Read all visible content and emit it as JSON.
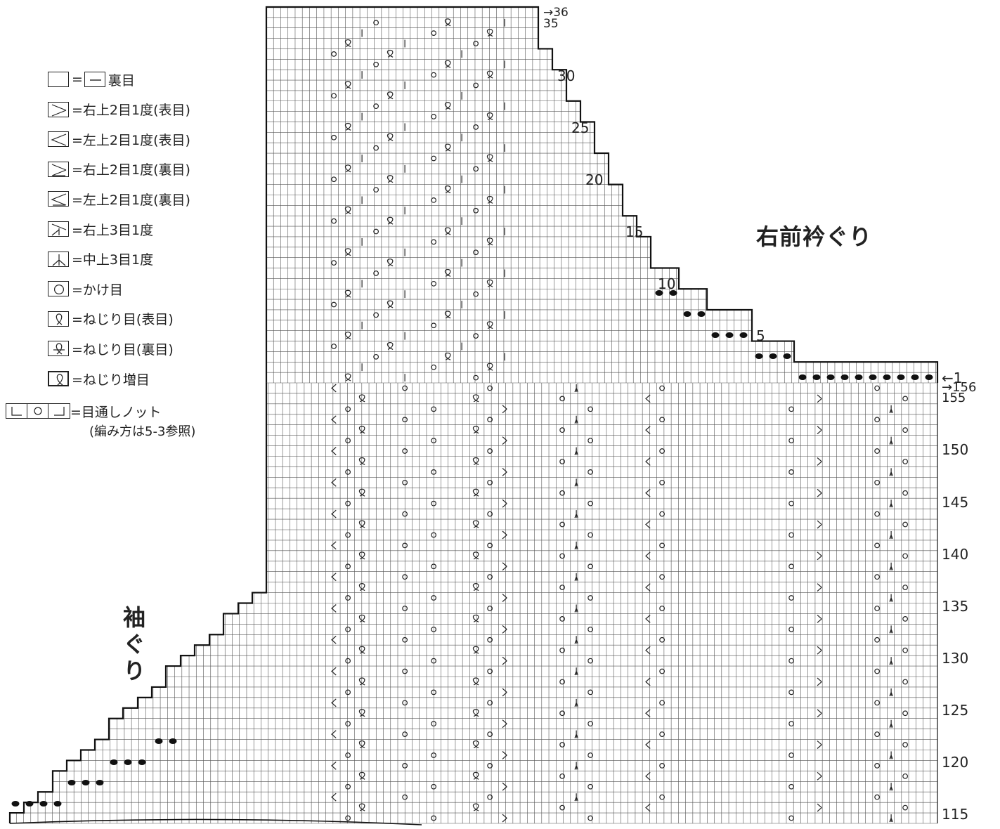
{
  "legend": [
    {
      "symbol": "purl",
      "text": "=",
      "text2": "裏目"
    },
    {
      "symbol": "k2tog-right",
      "text": "=右上2目1度(表目)"
    },
    {
      "symbol": "k2tog-left",
      "text": "=左上2目1度(表目)"
    },
    {
      "symbol": "p2tog-right",
      "text": "=右上2目1度(裏目)"
    },
    {
      "symbol": "p2tog-left",
      "text": "=左上2目1度(裏目)"
    },
    {
      "symbol": "k3tog-right",
      "text": "=右上3目1度"
    },
    {
      "symbol": "k3tog-center",
      "text": "=中上3目1度"
    },
    {
      "symbol": "yarn-over",
      "text": "=かけ目"
    },
    {
      "symbol": "twisted-knit",
      "text": "=ねじり目(表目)"
    },
    {
      "symbol": "twisted-purl",
      "text": "=ねじり目(裏目)"
    },
    {
      "symbol": "twisted-increase",
      "text": "=ねじり増目"
    }
  ],
  "knot": {
    "text": "=目通しノット",
    "note": "(編み方は5-3参照)"
  },
  "labels": {
    "right_neck": "右前衿ぐり",
    "left_armhole": "袖ぐり"
  },
  "row_labels_top": [
    {
      "text": "→36",
      "row": "36"
    },
    {
      "text": "35",
      "row": "35"
    },
    {
      "text": "30",
      "row": "30"
    },
    {
      "text": "25",
      "row": "25"
    },
    {
      "text": "20",
      "row": "20"
    },
    {
      "text": "15",
      "row": "15"
    },
    {
      "text": "10",
      "row": "10"
    },
    {
      "text": "5",
      "row": "5"
    },
    {
      "text": "←1",
      "row": "1"
    }
  ],
  "row_labels_bottom": [
    "→156",
    "155",
    "150",
    "145",
    "140",
    "135",
    "130",
    "125",
    "120",
    "115"
  ]
}
